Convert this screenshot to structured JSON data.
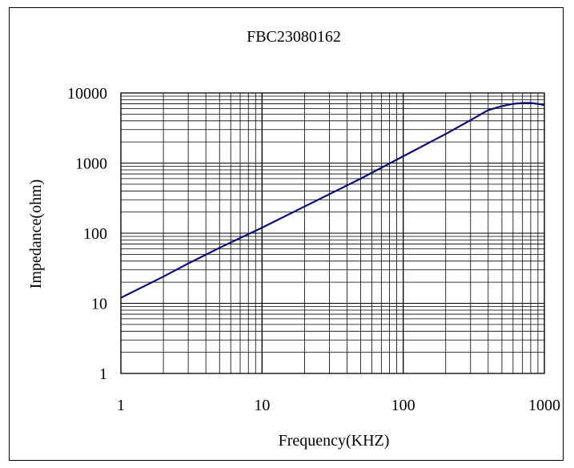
{
  "chart_data": {
    "type": "line",
    "title": "FBC23080162",
    "xlabel": "Frequency(KHZ)",
    "ylabel": "Impedance(ohm)",
    "x_scale": "log",
    "y_scale": "log",
    "xlim": [
      1,
      1000
    ],
    "ylim": [
      1,
      10000
    ],
    "x_ticks": [
      "1",
      "10",
      "100",
      "1000"
    ],
    "y_ticks": [
      "1",
      "10",
      "100",
      "1000",
      "10000"
    ],
    "grid": true,
    "legend": "none",
    "series": [
      {
        "color": "#0a0a7a",
        "x": [
          1,
          2,
          3,
          5,
          10,
          20,
          30,
          50,
          100,
          200,
          300,
          400,
          500,
          600,
          700,
          800,
          900,
          1000
        ],
        "y": [
          12,
          24,
          37,
          62,
          120,
          240,
          360,
          600,
          1250,
          2600,
          4100,
          5700,
          6500,
          7000,
          7200,
          7200,
          7000,
          6700
        ]
      }
    ]
  }
}
